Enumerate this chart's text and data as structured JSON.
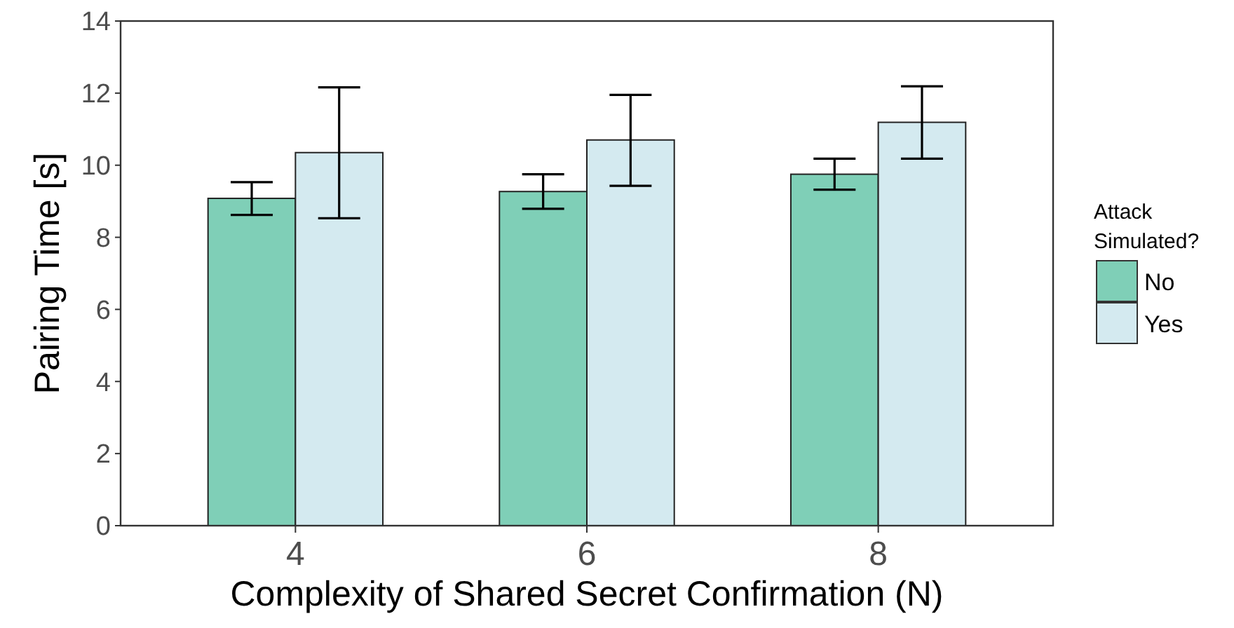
{
  "chart_data": {
    "type": "bar",
    "xlabel": "Complexity of Shared Secret Confirmation (N)",
    "ylabel": "Pairing Time [s]",
    "legend_title": "Attack\nSimulated?",
    "categories": [
      "4",
      "6",
      "8"
    ],
    "series": [
      {
        "name": "No",
        "color": "#7fcfb7",
        "values": [
          9.08,
          9.27,
          9.75
        ],
        "errors": [
          [
            8.62,
            9.53
          ],
          [
            8.79,
            9.75
          ],
          [
            9.32,
            10.18
          ]
        ]
      },
      {
        "name": "Yes",
        "color": "#d4eaf0",
        "values": [
          10.35,
          10.7,
          11.19
        ],
        "errors": [
          [
            8.53,
            12.16
          ],
          [
            9.43,
            11.95
          ],
          [
            10.18,
            12.19
          ]
        ]
      }
    ],
    "ylim": [
      0,
      14
    ],
    "yticks": [
      0,
      2,
      4,
      6,
      8,
      10,
      12,
      14
    ],
    "grid": false,
    "legend": "right"
  }
}
